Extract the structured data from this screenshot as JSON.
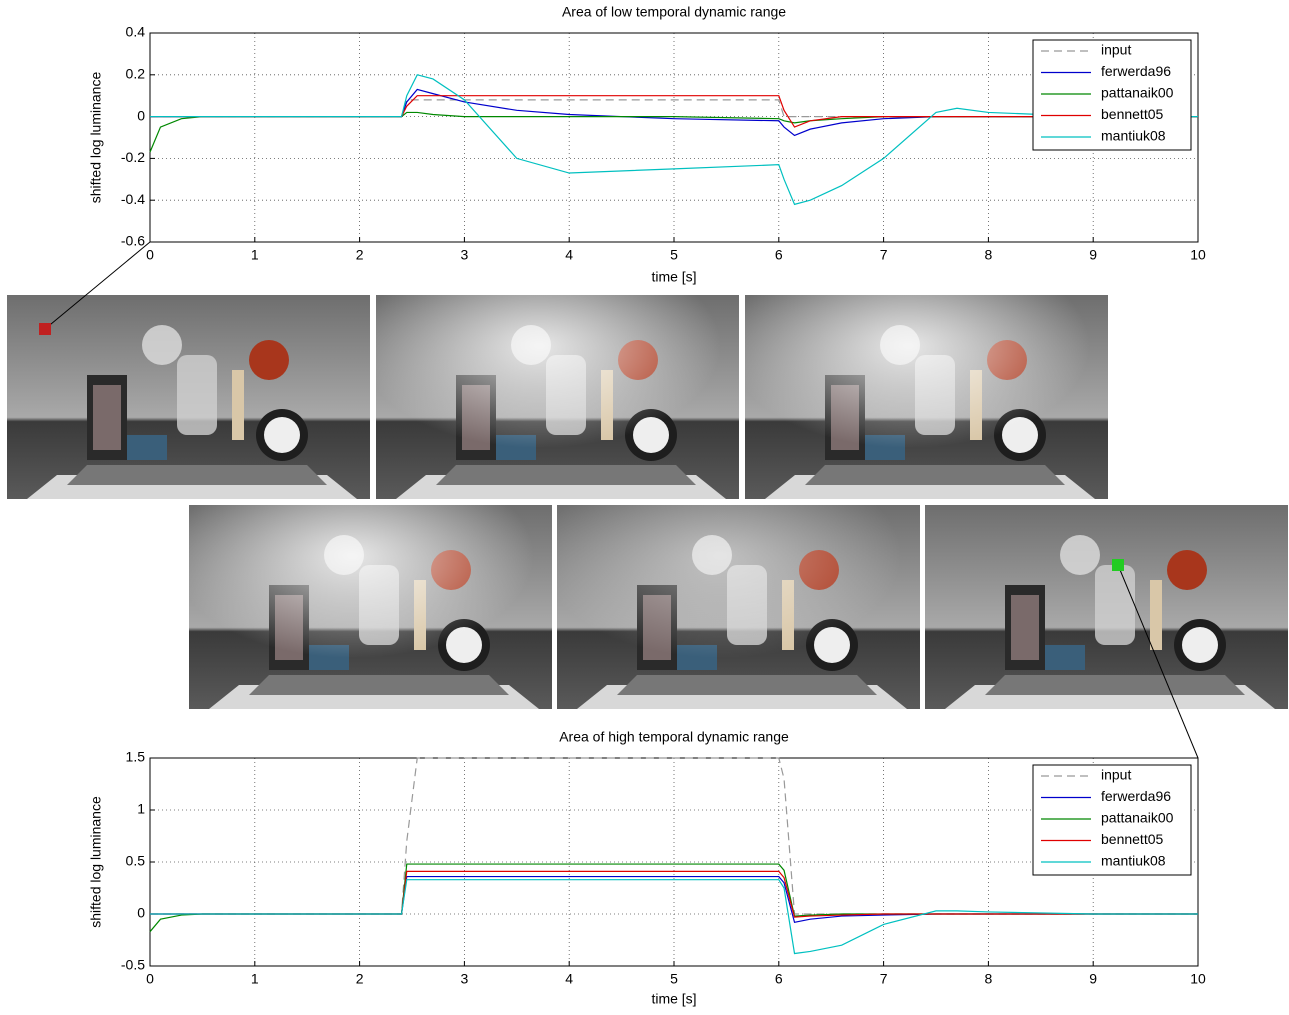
{
  "chart_data": [
    {
      "type": "line",
      "title": "Area of low temporal dynamic range",
      "xlabel": "time [s]",
      "ylabel": "shifted log luminance",
      "x": [
        0,
        0.1,
        0.3,
        0.5,
        2.4,
        2.45,
        2.55,
        2.7,
        3,
        3.5,
        4,
        5,
        6,
        6.05,
        6.15,
        6.3,
        6.6,
        7,
        7.5,
        7.7,
        8,
        9,
        10
      ],
      "series": [
        {
          "name": "input",
          "color": "#999999",
          "dashed": true,
          "values": [
            0,
            0,
            0,
            0,
            0,
            0.08,
            0.08,
            0.08,
            0.08,
            0.08,
            0.08,
            0.08,
            0.08,
            0,
            0,
            0,
            0,
            0,
            0,
            0,
            0,
            0,
            0
          ]
        },
        {
          "name": "ferwerda96",
          "color": "#0000cc",
          "values": [
            0,
            0,
            0,
            0,
            0,
            0.07,
            0.13,
            0.11,
            0.07,
            0.03,
            0.01,
            -0.01,
            -0.02,
            -0.05,
            -0.09,
            -0.06,
            -0.03,
            -0.01,
            0,
            0,
            0,
            0,
            0
          ]
        },
        {
          "name": "pattanaik00",
          "color": "#008800",
          "values": [
            -0.17,
            -0.05,
            -0.01,
            0,
            0,
            0.02,
            0.02,
            0.01,
            0,
            0,
            0,
            0,
            -0.01,
            -0.02,
            -0.03,
            -0.02,
            -0.01,
            0,
            0,
            0,
            0,
            0,
            0
          ]
        },
        {
          "name": "bennett05",
          "color": "#e00000",
          "values": [
            0,
            0,
            0,
            0,
            0,
            0.05,
            0.1,
            0.1,
            0.1,
            0.1,
            0.1,
            0.1,
            0.1,
            0.03,
            -0.05,
            -0.02,
            0,
            0,
            0,
            0,
            0,
            0,
            0
          ]
        },
        {
          "name": "mantiuk08",
          "color": "#00c0c0",
          "values": [
            0,
            0,
            0,
            0,
            0,
            0.1,
            0.2,
            0.18,
            0.08,
            -0.2,
            -0.27,
            -0.25,
            -0.23,
            -0.3,
            -0.42,
            -0.4,
            -0.33,
            -0.2,
            0.02,
            0.04,
            0.02,
            0,
            0
          ]
        }
      ],
      "xlim": [
        0,
        10
      ],
      "xticks": [
        0,
        1,
        2,
        3,
        4,
        5,
        6,
        7,
        8,
        9,
        10
      ],
      "ylim": [
        -0.6,
        0.4
      ],
      "yticks": [
        -0.6,
        -0.4,
        -0.2,
        0,
        0.2,
        0.4
      ],
      "grid": true,
      "legend": "upper right"
    },
    {
      "type": "line",
      "title": "Area of high temporal dynamic range",
      "xlabel": "time [s]",
      "ylabel": "shifted log luminance",
      "x": [
        0,
        0.1,
        0.3,
        0.5,
        2.4,
        2.45,
        2.55,
        2.7,
        3,
        3.5,
        4,
        5,
        6,
        6.05,
        6.15,
        6.3,
        6.6,
        7,
        7.5,
        7.7,
        8,
        9,
        10
      ],
      "series": [
        {
          "name": "input",
          "color": "#999999",
          "dashed": true,
          "values": [
            0,
            0,
            0,
            0,
            0,
            0.7,
            1.5,
            1.5,
            1.5,
            1.5,
            1.5,
            1.5,
            1.5,
            1.3,
            0,
            0,
            0,
            0,
            0,
            0,
            0,
            0,
            0
          ]
        },
        {
          "name": "ferwerda96",
          "color": "#0000cc",
          "values": [
            0,
            0,
            0,
            0,
            0,
            0.36,
            0.36,
            0.36,
            0.36,
            0.36,
            0.36,
            0.36,
            0.36,
            0.3,
            -0.08,
            -0.05,
            -0.02,
            -0.01,
            0,
            0,
            0,
            0,
            0
          ]
        },
        {
          "name": "pattanaik00",
          "color": "#008800",
          "values": [
            -0.17,
            -0.05,
            -0.01,
            0,
            0,
            0.48,
            0.48,
            0.48,
            0.48,
            0.48,
            0.48,
            0.48,
            0.48,
            0.42,
            -0.02,
            -0.01,
            0,
            0,
            0,
            0,
            0,
            0,
            0
          ]
        },
        {
          "name": "bennett05",
          "color": "#e00000",
          "values": [
            0,
            0,
            0,
            0,
            0,
            0.41,
            0.41,
            0.41,
            0.41,
            0.41,
            0.41,
            0.41,
            0.41,
            0.35,
            -0.03,
            -0.02,
            -0.01,
            0,
            0,
            0,
            0,
            0,
            0
          ]
        },
        {
          "name": "mantiuk08",
          "color": "#00c0c0",
          "values": [
            0,
            0,
            0,
            0,
            0,
            0.33,
            0.33,
            0.33,
            0.33,
            0.33,
            0.33,
            0.33,
            0.33,
            0.25,
            -0.38,
            -0.36,
            -0.3,
            -0.1,
            0.03,
            0.03,
            0.02,
            0,
            0
          ]
        }
      ],
      "xlim": [
        0,
        10
      ],
      "xticks": [
        0,
        1,
        2,
        3,
        4,
        5,
        6,
        7,
        8,
        9,
        10
      ],
      "ylim": [
        -0.5,
        1.5
      ],
      "yticks": [
        -0.5,
        0,
        0.5,
        1,
        1.5
      ],
      "grid": true,
      "legend": "upper right"
    }
  ]
}
